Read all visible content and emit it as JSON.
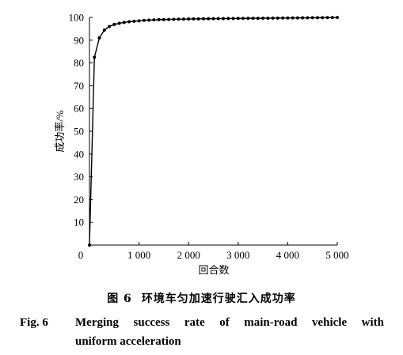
{
  "chart_data": {
    "type": "line",
    "title": "",
    "xlabel": "回合数",
    "ylabel": "成功率/%",
    "xlim": [
      0,
      5000
    ],
    "ylim": [
      0,
      100
    ],
    "x_ticks": [
      {
        "value": 0,
        "label": "0"
      },
      {
        "value": 1000,
        "label": "1 000"
      },
      {
        "value": 2000,
        "label": "2 000"
      },
      {
        "value": 3000,
        "label": "3 000"
      },
      {
        "value": 4000,
        "label": "4 000"
      },
      {
        "value": 5000,
        "label": "5 000"
      }
    ],
    "y_ticks": [
      {
        "value": 10,
        "label": "10"
      },
      {
        "value": 20,
        "label": "20"
      },
      {
        "value": 30,
        "label": "30"
      },
      {
        "value": 40,
        "label": "40"
      },
      {
        "value": 50,
        "label": "50"
      },
      {
        "value": 60,
        "label": "60"
      },
      {
        "value": 70,
        "label": "70"
      },
      {
        "value": 80,
        "label": "80"
      },
      {
        "value": 90,
        "label": "90"
      },
      {
        "value": 100,
        "label": "100"
      }
    ],
    "grid": false,
    "legend": "none",
    "series": [
      {
        "x": [
          0,
          100,
          200,
          300,
          400,
          500,
          600,
          700,
          800,
          900,
          1000,
          1100,
          1200,
          1300,
          1400,
          1500,
          1600,
          1700,
          1800,
          1900,
          2000,
          2100,
          2200,
          2300,
          2400,
          2500,
          2600,
          2700,
          2800,
          2900,
          3000,
          3100,
          3200,
          3300,
          3400,
          3500,
          3600,
          3700,
          3800,
          3900,
          4000,
          4100,
          4200,
          4300,
          4400,
          4500,
          4600,
          4700,
          4800,
          4900,
          5000
        ],
        "values": [
          0,
          82.5,
          91,
          94.4,
          96,
          96.9,
          97.4,
          97.8,
          98.1,
          98.3,
          98.5,
          98.7,
          98.8,
          98.9,
          99,
          99.05,
          99.1,
          99.15,
          99.2,
          99.25,
          99.3,
          99.33,
          99.36,
          99.39,
          99.42,
          99.45,
          99.47,
          99.49,
          99.51,
          99.53,
          99.55,
          99.57,
          99.59,
          99.61,
          99.63,
          99.65,
          99.67,
          99.69,
          99.71,
          99.73,
          99.75,
          99.77,
          99.79,
          99.81,
          99.83,
          99.85,
          99.87,
          99.89,
          99.91,
          99.93,
          99.95
        ]
      }
    ],
    "colors": {
      "line": "#000000",
      "marker": "#000000",
      "axis": "#000000"
    }
  },
  "caption": {
    "cn_number": "图 6",
    "cn_text": "环境车匀加速行驶汇入成功率",
    "en_label": "Fig. 6",
    "en_line1": "Merging success rate of main-road vehicle with",
    "en_line2": "uniform acceleration"
  }
}
